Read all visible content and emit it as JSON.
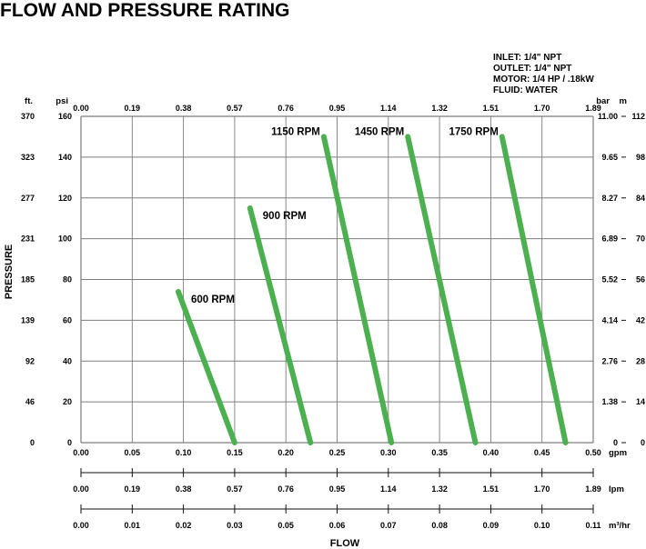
{
  "chart_data": {
    "type": "line",
    "title": "FLOW AND PRESSURE RATING",
    "specs": [
      "INLET: 1/4\" NPT",
      "OUTLET: 1/4\" NPT",
      "MOTOR: 1/4 HP /  .18kW",
      "FLUID: WATER"
    ],
    "xlabel": "FLOW",
    "ylabel": "PRESSURE",
    "xlim": [
      0,
      0.5
    ],
    "ylim": [
      0,
      160
    ],
    "grid": true,
    "line_color": "#4caf50",
    "x_axes": {
      "gpm": {
        "unit": "gpm",
        "ticks": [
          "0.00",
          "0.05",
          "0.10",
          "0.15",
          "0.20",
          "0.25",
          "0.30",
          "0.35",
          "0.40",
          "0.45",
          "0.50"
        ]
      },
      "lpm_top": {
        "ticks": [
          "0.00",
          "0.19",
          "0.38",
          "0.57",
          "0.76",
          "0.95",
          "1.14",
          "1.32",
          "1.51",
          "1.70",
          "1.89"
        ]
      },
      "lpm": {
        "unit": "lpm",
        "ticks": [
          "0.00",
          "0.19",
          "0.38",
          "0.57",
          "0.76",
          "0.95",
          "1.14",
          "1.32",
          "1.51",
          "1.70",
          "1.89"
        ]
      },
      "m3hr": {
        "unit": "m³/hr",
        "ticks": [
          "0.00",
          "0.01",
          "0.02",
          "0.03",
          "0.05",
          "0.06",
          "0.07",
          "0.08",
          "0.09",
          "0.10",
          "0.11"
        ]
      }
    },
    "y_axes": {
      "psi": {
        "unit": "psi",
        "ticks": [
          "0",
          "20",
          "40",
          "60",
          "80",
          "100",
          "120",
          "140",
          "160"
        ]
      },
      "ft": {
        "unit": "ft.",
        "ticks": [
          "0",
          "46",
          "92",
          "139",
          "185",
          "231",
          "277",
          "323",
          "370"
        ]
      },
      "bar": {
        "unit": "bar",
        "ticks": [
          "0",
          "1.38",
          "2.76",
          "4.14",
          "5.52",
          "6.89",
          "8.27",
          "9.65",
          "11.00"
        ]
      },
      "m": {
        "unit": "m",
        "ticks": [
          "0",
          "14",
          "28",
          "42",
          "56",
          "70",
          "84",
          "98",
          "112"
        ]
      }
    },
    "series": [
      {
        "name": "600 RPM",
        "x": [
          0.095,
          0.15
        ],
        "y": [
          74,
          0
        ]
      },
      {
        "name": "900 RPM",
        "x": [
          0.165,
          0.224
        ],
        "y": [
          115,
          0
        ]
      },
      {
        "name": "1150 RPM",
        "x": [
          0.237,
          0.303
        ],
        "y": [
          150,
          0
        ]
      },
      {
        "name": "1450 RPM",
        "x": [
          0.319,
          0.385
        ],
        "y": [
          150,
          0
        ]
      },
      {
        "name": "1750 RPM",
        "x": [
          0.411,
          0.473
        ],
        "y": [
          150,
          0
        ]
      }
    ]
  }
}
